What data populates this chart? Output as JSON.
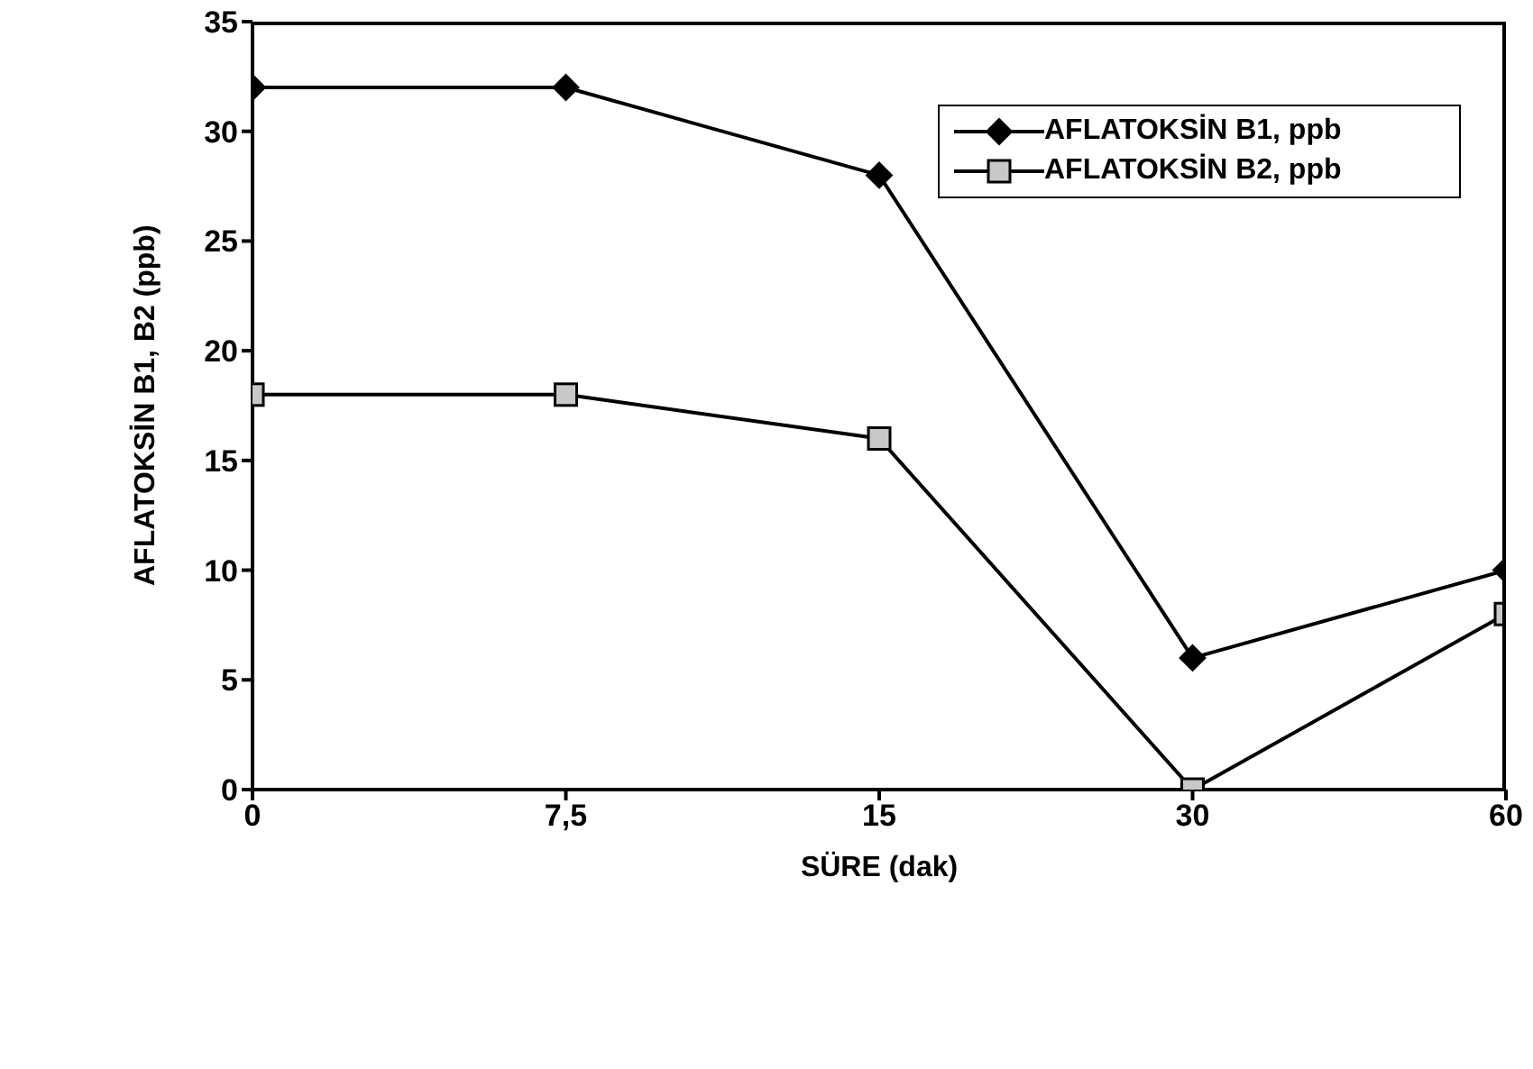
{
  "chart_data": {
    "type": "line",
    "xlabel": "SÜRE (dak)",
    "ylabel": "AFLATOKSİN B1, B2 (ppb)",
    "categories": [
      "0",
      "7,5",
      "15",
      "30",
      "60"
    ],
    "series": [
      {
        "name": "AFLATOKSİN B1, ppb",
        "color": "#000000",
        "marker": "diamond",
        "values": [
          32,
          32,
          28,
          6,
          10
        ]
      },
      {
        "name": "AFLATOKSİN B2, ppb",
        "color": "#000000",
        "marker": "square",
        "values": [
          18,
          18,
          16,
          0,
          8
        ]
      }
    ],
    "ylim": [
      0,
      35
    ],
    "yticks": [
      0,
      5,
      10,
      15,
      20,
      25,
      30,
      35
    ],
    "grid": false,
    "legend": "top right",
    "line_style": "solid"
  }
}
